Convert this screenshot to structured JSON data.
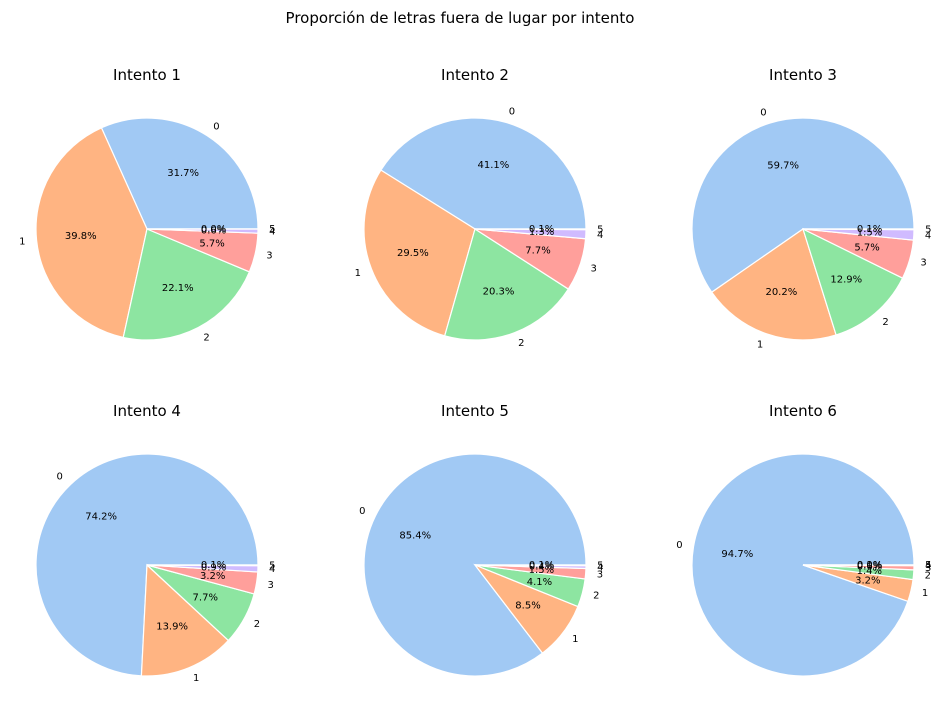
{
  "chart_data": {
    "title": "Proporción de letras fuera de lugar por intento",
    "type": "pie",
    "categories": [
      "0",
      "1",
      "2",
      "3",
      "4",
      "5"
    ],
    "colors": [
      "#a1c9f4",
      "#ffb482",
      "#8de5a1",
      "#ff9f9b",
      "#d0bbff",
      "#debb9b"
    ],
    "start_angle_deg": 0,
    "direction": "counterclockwise",
    "percent_format": "{v}%",
    "charts": [
      {
        "title": "Intento 1",
        "values": [
          31.7,
          39.8,
          22.1,
          5.7,
          0.6,
          0.0
        ]
      },
      {
        "title": "Intento 2",
        "values": [
          41.1,
          29.5,
          20.3,
          7.7,
          1.3,
          0.1
        ]
      },
      {
        "title": "Intento 3",
        "values": [
          59.7,
          20.2,
          12.9,
          5.7,
          1.5,
          0.1
        ]
      },
      {
        "title": "Intento 4",
        "values": [
          74.2,
          13.9,
          7.7,
          3.2,
          0.9,
          0.1
        ]
      },
      {
        "title": "Intento 5",
        "values": [
          85.4,
          8.5,
          4.1,
          1.5,
          0.4,
          0.1
        ]
      },
      {
        "title": "Intento 6",
        "values": [
          94.7,
          3.2,
          1.4,
          0.6,
          0.1,
          0.0
        ]
      }
    ]
  }
}
